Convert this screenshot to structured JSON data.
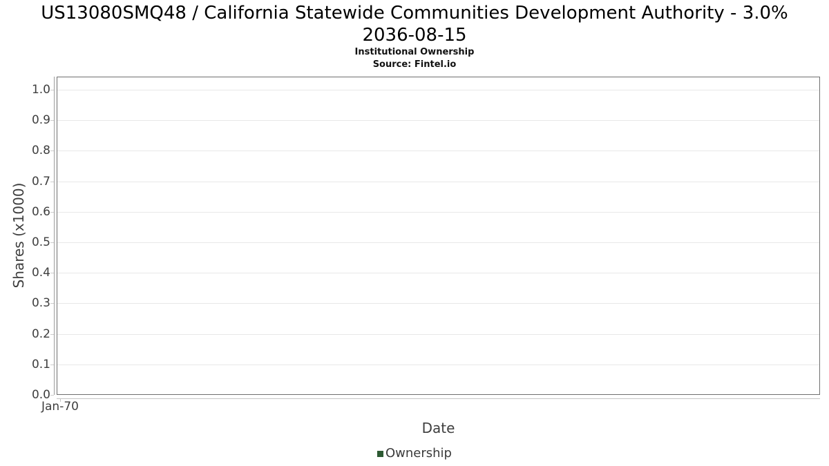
{
  "header": {
    "title_line1": "US13080SMQ48 / California Statewide Communities Development Authority - 3.0%",
    "title_line2": "2036-08-15",
    "subtitle": "Institutional Ownership",
    "source": "Source: Fintel.io"
  },
  "chart_data": {
    "type": "line",
    "title": "US13080SMQ48 / California Statewide Communities Development Authority - 3.0% 2036-08-15",
    "subtitle": "Institutional Ownership",
    "source": "Source: Fintel.io",
    "xlabel": "Date",
    "ylabel": "Shares (x1000)",
    "ylim": [
      0.0,
      1.0
    ],
    "yticks": [
      "1.0",
      "0.9",
      "0.8",
      "0.7",
      "0.6",
      "0.5",
      "0.4",
      "0.3",
      "0.2",
      "0.1",
      "0.0"
    ],
    "ytick_values": [
      1.0,
      0.9,
      0.8,
      0.7,
      0.6,
      0.5,
      0.4,
      0.3,
      0.2,
      0.1,
      0.0
    ],
    "xticks": [
      "Jan-70"
    ],
    "grid": true,
    "legend_position": "bottom",
    "series": [
      {
        "name": "Ownership",
        "color": "#2d5a33",
        "x": [],
        "y": []
      }
    ]
  },
  "legend": {
    "label": "Ownership",
    "swatch_color": "#2d5a33"
  },
  "colors": {
    "title_text": "#000000",
    "axis_text": "#3e3e3e",
    "plot_border": "#6e6e6e",
    "gridline": "#e8e8e8",
    "tick_mark": "#cccccc",
    "y_axis_line": "#9a9a9a",
    "x_axis_line": "#c4c4c4",
    "legend_swatch": "#2d5a33"
  }
}
